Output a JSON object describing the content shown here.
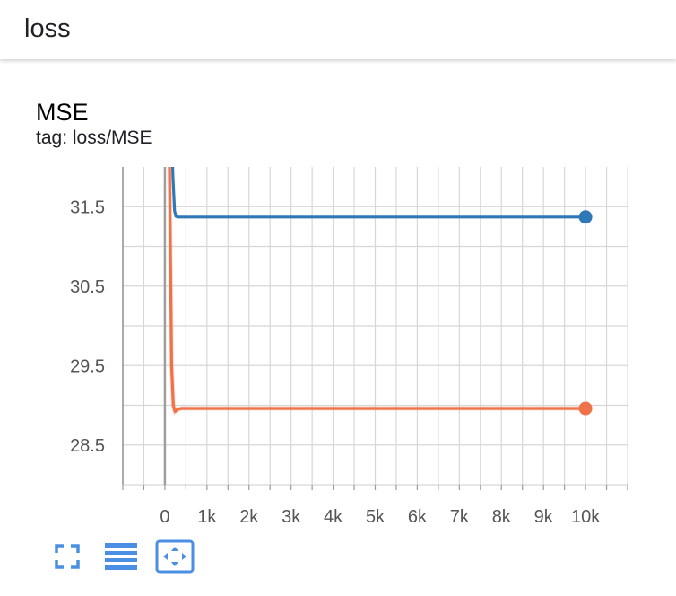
{
  "header": {
    "title": "loss"
  },
  "card": {
    "title": "MSE",
    "tag": "tag: loss/MSE"
  },
  "colors": {
    "series_blue": "#2f78b7",
    "series_orange": "#ef7249",
    "icon_blue": "#4a8fe3",
    "grid": "#d7d7d7"
  },
  "toolbar": {
    "icons": [
      "fullscreen-icon",
      "data-table-icon",
      "fit-domain-icon"
    ]
  },
  "chart_data": {
    "type": "line",
    "title": "",
    "xlabel": "",
    "ylabel": "",
    "xlim": [
      -1000,
      11000
    ],
    "ylim": [
      28.0,
      32.0
    ],
    "grid": true,
    "x_ticks": [
      0,
      1000,
      2000,
      3000,
      4000,
      5000,
      6000,
      7000,
      8000,
      9000,
      10000
    ],
    "x_tick_labels": [
      "0",
      "1k",
      "2k",
      "3k",
      "4k",
      "5k",
      "6k",
      "7k",
      "8k",
      "9k",
      "10k"
    ],
    "y_ticks": [
      28.5,
      29.5,
      30.5,
      31.5
    ],
    "y_tick_labels": [
      "28.5",
      "29.5",
      "30.5",
      "31.5"
    ],
    "series": [
      {
        "color": "#2f78b7",
        "x": [
          160,
          190,
          230,
          260,
          300,
          400,
          1000,
          2000,
          4000,
          6000,
          8000,
          10000
        ],
        "y": [
          32.5,
          31.9,
          31.45,
          31.38,
          31.37,
          31.37,
          31.37,
          31.37,
          31.37,
          31.37,
          31.37,
          31.37
        ]
      },
      {
        "color": "#ef7249",
        "x": [
          100,
          130,
          160,
          200,
          240,
          300,
          400,
          1000,
          2000,
          4000,
          6000,
          8000,
          10000
        ],
        "y": [
          32.5,
          31.0,
          29.5,
          29.0,
          28.92,
          28.95,
          28.96,
          28.96,
          28.96,
          28.96,
          28.96,
          28.96,
          28.96
        ]
      }
    ]
  }
}
